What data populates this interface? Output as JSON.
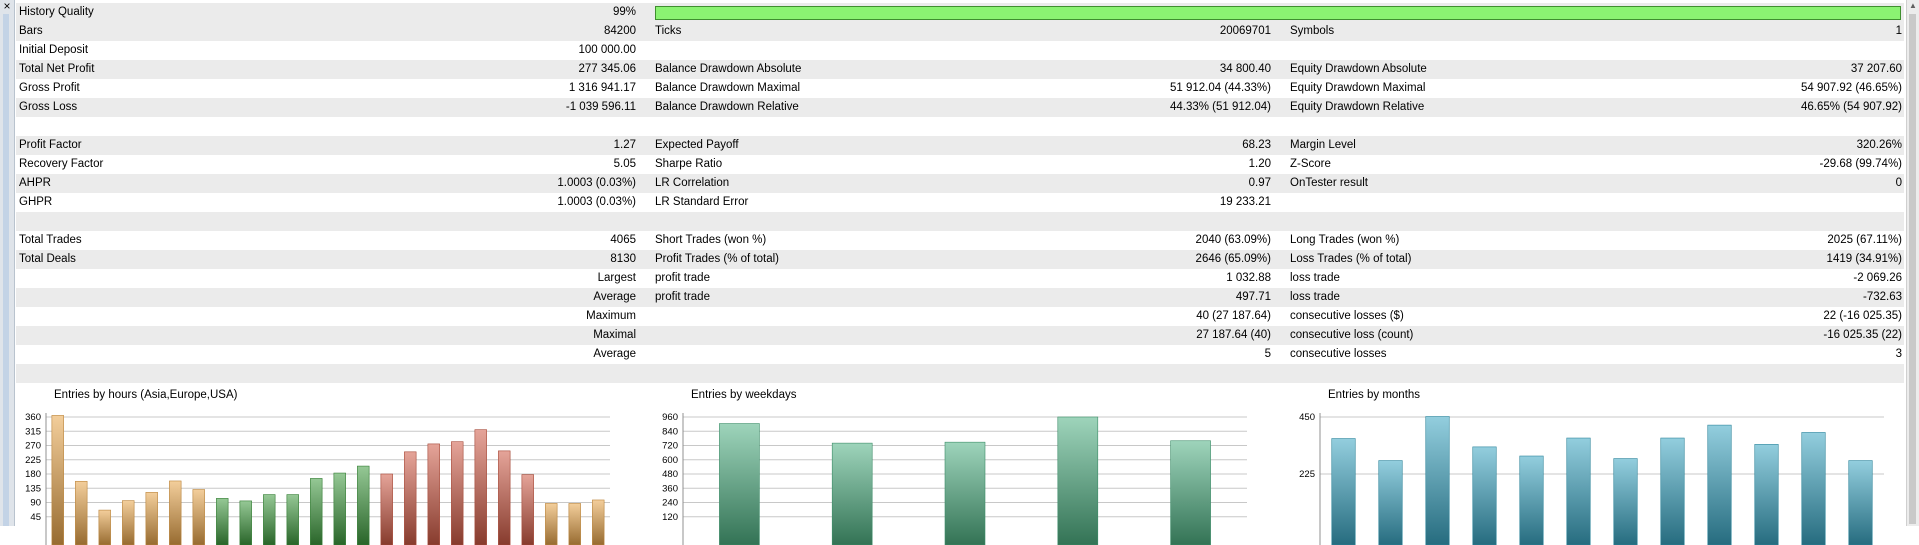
{
  "rows": [
    {
      "shade": true,
      "cells": [
        "History Quality",
        "99%",
        "",
        "",
        "",
        ""
      ]
    },
    {
      "shade": true,
      "cells": [
        "Bars",
        "84200",
        "Ticks",
        "20069701",
        "Symbols",
        "1"
      ]
    },
    {
      "shade": false,
      "cells": [
        "Initial Deposit",
        "100 000.00",
        "",
        "",
        "",
        ""
      ]
    },
    {
      "shade": true,
      "cells": [
        "Total Net Profit",
        "277 345.06",
        "Balance Drawdown Absolute",
        "34 800.40",
        "Equity Drawdown Absolute",
        "37 207.60"
      ]
    },
    {
      "shade": false,
      "cells": [
        "Gross Profit",
        "1 316 941.17",
        "Balance Drawdown Maximal",
        "51 912.04 (44.33%)",
        "Equity Drawdown Maximal",
        "54 907.92 (46.65%)"
      ]
    },
    {
      "shade": true,
      "cells": [
        "Gross Loss",
        "-1 039 596.11",
        "Balance Drawdown Relative",
        "44.33% (51 912.04)",
        "Equity Drawdown Relative",
        "46.65% (54 907.92)"
      ]
    },
    {
      "shade": false,
      "cells": [
        "",
        "",
        "",
        "",
        "",
        ""
      ]
    },
    {
      "shade": true,
      "cells": [
        "Profit Factor",
        "1.27",
        "Expected Payoff",
        "68.23",
        "Margin Level",
        "320.26%"
      ]
    },
    {
      "shade": false,
      "cells": [
        "Recovery Factor",
        "5.05",
        "Sharpe Ratio",
        "1.20",
        "Z-Score",
        "-29.68 (99.74%)"
      ]
    },
    {
      "shade": true,
      "cells": [
        "AHPR",
        "1.0003 (0.03%)",
        "LR Correlation",
        "0.97",
        "OnTester result",
        "0"
      ]
    },
    {
      "shade": false,
      "cells": [
        "GHPR",
        "1.0003 (0.03%)",
        "LR Standard Error",
        "19 233.21",
        "",
        ""
      ]
    },
    {
      "shade": true,
      "cells": [
        "",
        "",
        "",
        "",
        "",
        ""
      ]
    },
    {
      "shade": false,
      "cells": [
        "Total Trades",
        "4065",
        "Short Trades (won %)",
        "2040 (63.09%)",
        "Long Trades (won %)",
        "2025 (67.11%)"
      ]
    },
    {
      "shade": true,
      "cells": [
        "Total Deals",
        "8130",
        "Profit Trades (% of total)",
        "2646 (65.09%)",
        "Loss Trades (% of total)",
        "1419 (34.91%)"
      ]
    },
    {
      "shade": false,
      "cells": [
        "",
        "Largest",
        "profit trade",
        "1 032.88",
        "loss trade",
        "-2 069.26"
      ]
    },
    {
      "shade": true,
      "cells": [
        "",
        "Average",
        "profit trade",
        "497.71",
        "loss trade",
        "-732.63"
      ]
    },
    {
      "shade": false,
      "cells": [
        "",
        "Maximum",
        "",
        "40 (27 187.64)",
        "consecutive losses ($)",
        "22 (-16 025.35)"
      ]
    },
    {
      "shade": true,
      "cells": [
        "",
        "Maximal",
        "",
        "27 187.64 (40)",
        "consecutive loss (count)",
        "-16 025.35 (22)"
      ]
    },
    {
      "shade": false,
      "cells": [
        "",
        "Average",
        "",
        "5",
        "consecutive losses",
        "3"
      ]
    },
    {
      "shade": true,
      "cells": [
        "",
        "",
        "",
        "",
        "",
        ""
      ]
    }
  ],
  "history_quality": 0.99,
  "colors": {
    "quality_bar": "#8bf372",
    "row_shade": "#ebebeb"
  },
  "chart_data": [
    {
      "type": "bar",
      "title": "Entries by hours (Asia,Europe,USA)",
      "y_ticks": [
        360,
        315,
        270,
        225,
        180,
        135,
        90,
        45
      ],
      "ylim": [
        0,
        360
      ],
      "values": [
        365,
        157,
        66,
        96,
        122,
        158,
        131,
        103,
        95,
        115,
        115,
        166,
        183,
        205,
        180,
        250,
        275,
        282,
        320,
        253,
        178,
        87,
        87,
        98
      ],
      "colors": [
        "#e9a54a",
        "#e9a54a",
        "#e9a54a",
        "#e9a54a",
        "#e9a54a",
        "#e9a54a",
        "#e9a54a",
        "#3f9b3f",
        "#3f9b3f",
        "#3f9b3f",
        "#3f9b3f",
        "#3f9b3f",
        "#3f9b3f",
        "#3f9b3f",
        "#d05a45",
        "#d05a45",
        "#d05a45",
        "#d05a45",
        "#d05a45",
        "#d05a45",
        "#d05a45",
        "#e9a54a",
        "#e9a54a",
        "#e9a54a"
      ]
    },
    {
      "type": "bar",
      "title": "Entries by weekdays",
      "y_ticks": [
        960,
        840,
        720,
        600,
        480,
        360,
        240,
        120
      ],
      "ylim": [
        0,
        960
      ],
      "values": [
        905,
        740,
        748,
        960,
        760
      ],
      "colors": [
        "#4eb183",
        "#4eb183",
        "#4eb183",
        "#4eb183",
        "#4eb183"
      ]
    },
    {
      "type": "bar",
      "title": "Entries by months",
      "y_ticks": [
        450,
        225
      ],
      "ylim": [
        0,
        450
      ],
      "values": [
        365,
        278,
        452,
        332,
        296,
        367,
        286,
        367,
        418,
        342,
        389,
        278
      ],
      "colors": [
        "#3aa6c3",
        "#3aa6c3",
        "#3aa6c3",
        "#3aa6c3",
        "#3aa6c3",
        "#3aa6c3",
        "#3aa6c3",
        "#3aa6c3",
        "#3aa6c3",
        "#3aa6c3",
        "#3aa6c3",
        "#3aa6c3"
      ]
    }
  ]
}
